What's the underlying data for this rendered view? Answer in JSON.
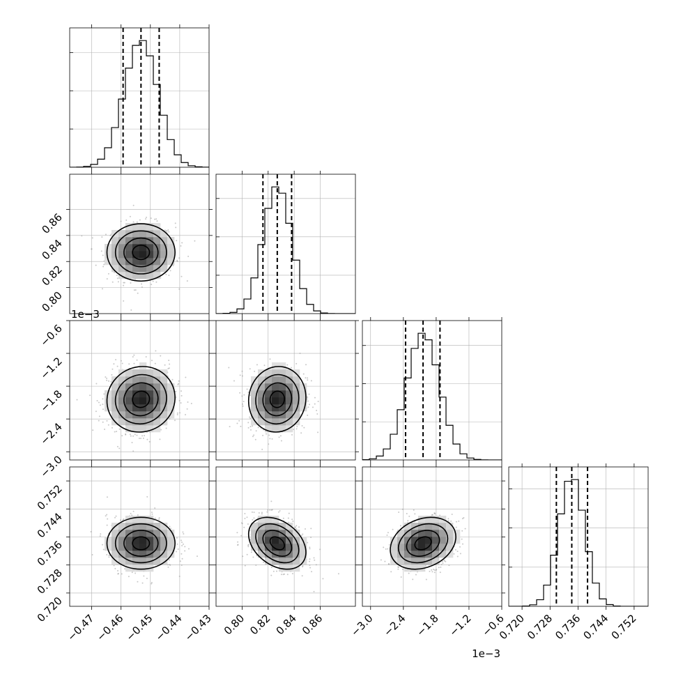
{
  "chart_data": {
    "type": "corner",
    "parameters": [
      {
        "index": 0,
        "range": [
          -0.4775,
          -0.43
        ],
        "ticks": [
          -0.47,
          -0.46,
          -0.45,
          -0.44,
          -0.43
        ],
        "tick_labels": [
          "−0.47",
          "−0.46",
          "−0.45",
          "−0.44",
          "−0.43"
        ],
        "offset_label": "",
        "mean": -0.4532,
        "sd": 0.0058,
        "quantiles": [
          -0.4593,
          -0.4532,
          -0.447
        ]
      },
      {
        "index": 1,
        "range": [
          0.78,
          0.887
        ],
        "ticks": [
          0.8,
          0.82,
          0.84,
          0.86
        ],
        "tick_labels": [
          "0.80",
          "0.82",
          "0.84",
          "0.86"
        ],
        "offset_label": "",
        "mean": 0.827,
        "sd": 0.011,
        "quantiles": [
          0.816,
          0.827,
          0.838
        ]
      },
      {
        "index": 2,
        "range": [
          -3.15,
          -0.6
        ],
        "ticks": [
          -3.0,
          -2.4,
          -1.8,
          -1.2,
          -0.6
        ],
        "tick_labels": [
          "−3.0",
          "−2.4",
          "−1.8",
          "−1.2",
          "−0.6"
        ],
        "offset_label": "1e−3",
        "mean": -2.04,
        "sd": 0.3,
        "quantiles": [
          -2.36,
          -2.04,
          -1.73
        ]
      },
      {
        "index": 3,
        "range": [
          0.7162,
          0.756
        ],
        "ticks": [
          0.72,
          0.728,
          0.736,
          0.744,
          0.752
        ],
        "tick_labels": [
          "0.720",
          "0.728",
          "0.736",
          "0.744",
          "0.752"
        ],
        "offset_label": "",
        "mean": 0.7342,
        "sd": 0.0037,
        "quantiles": [
          0.7298,
          0.7342,
          0.7387
        ]
      }
    ],
    "correlations": {
      "1-0": 0.0,
      "2-0": 0.05,
      "2-1": 0.05,
      "3-0": 0.0,
      "3-1": -0.35,
      "3-2": 0.25
    },
    "contour_levels_sigma": [
      0.5,
      1.0,
      1.5,
      2.0
    ],
    "grid": true,
    "quantile_line_style": "dashed",
    "xlabels": [
      "",
      "",
      "",
      ""
    ],
    "ylabels": [
      "",
      "",
      "",
      ""
    ]
  }
}
